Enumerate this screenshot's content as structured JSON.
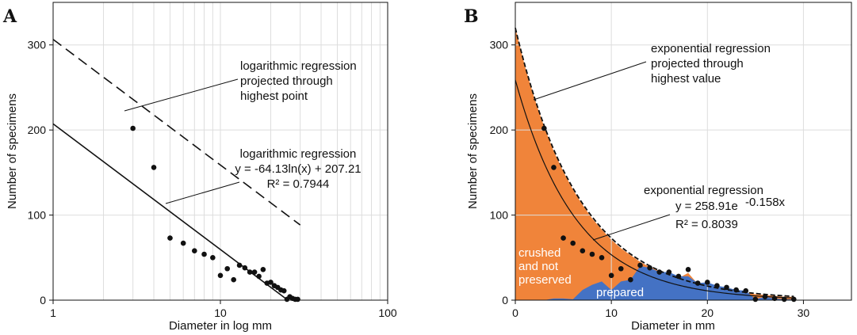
{
  "chart_data": [
    {
      "panel_letter": "A",
      "type": "scatter",
      "x_scale": "log",
      "xlabel": "Diameter in log mm",
      "ylabel": "Number of specimens",
      "xlim": [
        1,
        100
      ],
      "ylim": [
        0,
        350
      ],
      "x_ticks": [
        1,
        10,
        100
      ],
      "y_ticks": [
        0,
        100,
        200,
        300
      ],
      "grid": true,
      "points": [
        {
          "x": 3,
          "y": 202
        },
        {
          "x": 4,
          "y": 156
        },
        {
          "x": 5,
          "y": 73
        },
        {
          "x": 6,
          "y": 67
        },
        {
          "x": 7,
          "y": 58
        },
        {
          "x": 8,
          "y": 54
        },
        {
          "x": 9,
          "y": 50
        },
        {
          "x": 10,
          "y": 29
        },
        {
          "x": 11,
          "y": 37
        },
        {
          "x": 12,
          "y": 24
        },
        {
          "x": 13,
          "y": 41
        },
        {
          "x": 14,
          "y": 38
        },
        {
          "x": 15,
          "y": 33
        },
        {
          "x": 16,
          "y": 33
        },
        {
          "x": 17,
          "y": 28
        },
        {
          "x": 18,
          "y": 36
        },
        {
          "x": 19,
          "y": 20
        },
        {
          "x": 20,
          "y": 21
        },
        {
          "x": 21,
          "y": 17
        },
        {
          "x": 22,
          "y": 15
        },
        {
          "x": 23,
          "y": 12
        },
        {
          "x": 24,
          "y": 11
        },
        {
          "x": 25,
          "y": 1
        },
        {
          "x": 26,
          "y": 4
        },
        {
          "x": 27,
          "y": 2
        },
        {
          "x": 28,
          "y": 1
        },
        {
          "x": 29,
          "y": 1
        }
      ],
      "lines": [
        {
          "style": "solid",
          "equation": "y = -64.13ln(x) + 207.21",
          "a": -64.13,
          "b": 207.21,
          "x_range": [
            1,
            25.3
          ]
        },
        {
          "style": "dashed",
          "a": -64.13,
          "b": 306.5,
          "x_range": [
            1,
            30
          ]
        }
      ],
      "annotations": {
        "projected": [
          "logarithmic regression",
          "projected through",
          "highest point"
        ],
        "regression": [
          "logarithmic regression",
          "y = -64.13ln(x) + 207.21",
          "R² = 0.7944"
        ]
      }
    },
    {
      "panel_letter": "B",
      "type": "area",
      "xlabel": "Diameter in mm",
      "ylabel": "Number of specimens",
      "xlim": [
        0,
        35
      ],
      "ylim": [
        0,
        350
      ],
      "x_ticks": [
        0,
        10,
        20,
        30
      ],
      "y_ticks": [
        0,
        100,
        200,
        300
      ],
      "grid": true,
      "series": [
        {
          "name": "crushed and not preserved",
          "color": "#f0843a",
          "x": [
            0,
            1,
            2,
            3,
            4,
            5,
            6,
            7,
            8,
            9,
            10,
            11,
            12,
            13,
            14,
            15,
            16,
            17,
            18,
            19,
            20,
            21,
            22,
            23,
            24,
            25,
            26,
            27,
            28,
            29
          ],
          "values": [
            320,
            275,
            237,
            204,
            175,
            151,
            130,
            112,
            96,
            83,
            71,
            61,
            53,
            45,
            39,
            34,
            29,
            26,
            32,
            19,
            16,
            14,
            12,
            10,
            9,
            7,
            6,
            5,
            4,
            4
          ]
        },
        {
          "name": "prepared",
          "color": "#4472c4",
          "x": [
            3,
            4,
            5,
            6,
            7,
            8,
            9,
            10,
            11,
            12,
            13,
            14,
            15,
            16,
            17,
            18,
            19,
            20,
            21,
            22,
            23,
            24,
            25,
            26,
            27,
            28,
            29
          ],
          "values": [
            0,
            2,
            2,
            1,
            12,
            18,
            22,
            12,
            22,
            24,
            40,
            38,
            33,
            33,
            28,
            28,
            20,
            21,
            17,
            15,
            12,
            11,
            1,
            4,
            2,
            1,
            1
          ]
        }
      ],
      "points": [
        {
          "x": 3,
          "y": 202
        },
        {
          "x": 4,
          "y": 156
        },
        {
          "x": 5,
          "y": 73
        },
        {
          "x": 6,
          "y": 67
        },
        {
          "x": 7,
          "y": 58
        },
        {
          "x": 8,
          "y": 54
        },
        {
          "x": 9,
          "y": 50
        },
        {
          "x": 10,
          "y": 29
        },
        {
          "x": 11,
          "y": 37
        },
        {
          "x": 12,
          "y": 24
        },
        {
          "x": 13,
          "y": 41
        },
        {
          "x": 14,
          "y": 38
        },
        {
          "x": 15,
          "y": 33
        },
        {
          "x": 16,
          "y": 33
        },
        {
          "x": 17,
          "y": 28
        },
        {
          "x": 18,
          "y": 36
        },
        {
          "x": 19,
          "y": 20
        },
        {
          "x": 20,
          "y": 21
        },
        {
          "x": 21,
          "y": 17
        },
        {
          "x": 22,
          "y": 15
        },
        {
          "x": 23,
          "y": 12
        },
        {
          "x": 24,
          "y": 11
        },
        {
          "x": 25,
          "y": 1
        },
        {
          "x": 26,
          "y": 4
        },
        {
          "x": 27,
          "y": 2
        },
        {
          "x": 28,
          "y": 1
        },
        {
          "x": 29,
          "y": 1
        }
      ],
      "lines": [
        {
          "style": "solid",
          "equation": "y = 258.91e -0.158x",
          "a": 258.91,
          "k": -0.158,
          "x_range": [
            0,
            29
          ]
        },
        {
          "style": "dashed",
          "a": 320,
          "k": -0.148,
          "x_range": [
            0,
            29
          ]
        }
      ],
      "annotations": {
        "projected": [
          "exponential regression",
          "projected through",
          "highest value"
        ],
        "regression": [
          "exponential regression",
          "y = 258.91e",
          "-0.158x",
          "R² = 0.8039"
        ],
        "area_crushed": [
          "crushed",
          "and not",
          "preserved"
        ],
        "area_prepared": "prepared"
      }
    }
  ]
}
